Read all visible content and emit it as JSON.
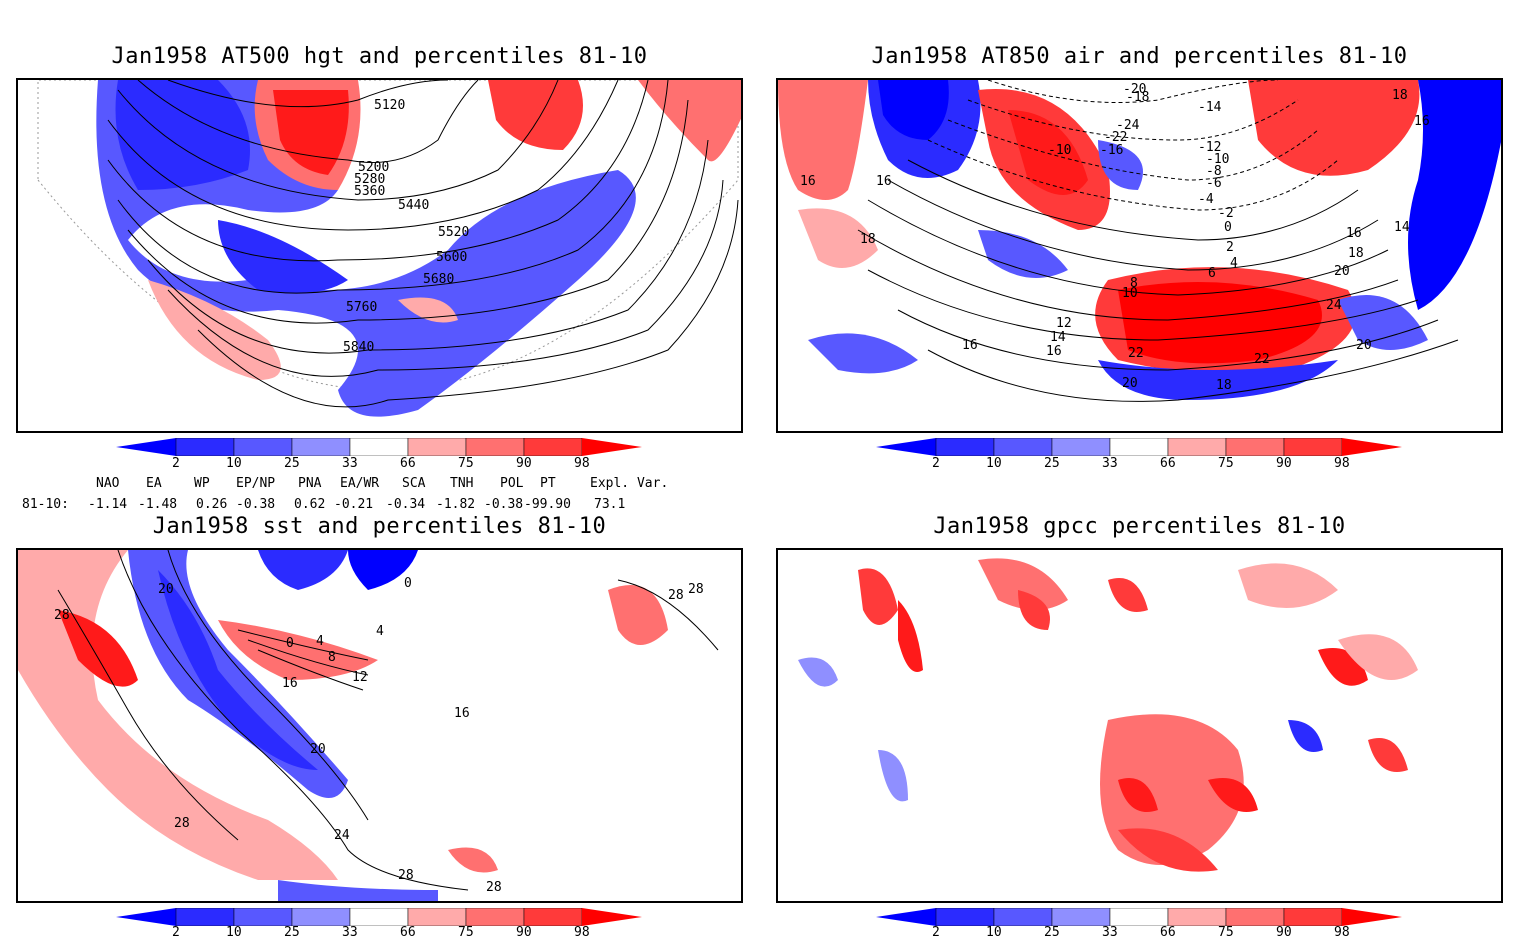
{
  "colors": {
    "bins": [
      "#0000ff",
      "#2b2bff",
      "#5858ff",
      "#8f8fff",
      "#c4c4ff",
      "#ffffff",
      "#ffaaaa",
      "#ff7070",
      "#ff3a3a",
      "#ff1a1a",
      "#ff0000"
    ],
    "coast": "#20c5c5",
    "contour": "#000000"
  },
  "colorbar": {
    "labels": [
      "2",
      "10",
      "25",
      "33",
      "66",
      "75",
      "90",
      "98"
    ]
  },
  "panels": [
    {
      "id": "hgt500",
      "title": "Jan1958 AT500 hgt and percentiles 81-10",
      "contour_labels": [
        "5120",
        "5200",
        "5280",
        "5360",
        "5440",
        "5520",
        "5600",
        "5680",
        "5760",
        "5840"
      ]
    },
    {
      "id": "air850",
      "title": "Jan1958 AT850 air and percentiles 81-10",
      "contour_labels": [
        "-20",
        "-18",
        "-14",
        "-24",
        "-22",
        "-16",
        "-10",
        "-12",
        "-10",
        "-8",
        "-6",
        "-4",
        "-2",
        "0",
        "2",
        "4",
        "6",
        "8",
        "10",
        "12",
        "14",
        "16",
        "16",
        "16",
        "18",
        "18",
        "16",
        "14",
        "16",
        "18",
        "20",
        "24",
        "22",
        "22",
        "20",
        "20",
        "18",
        "16"
      ]
    },
    {
      "id": "sst",
      "title": "Jan1958 sst and percentiles 81-10",
      "contour_labels": [
        "28",
        "20",
        "0",
        "0",
        "4",
        "4",
        "8",
        "12",
        "16",
        "16",
        "20",
        "28",
        "24",
        "28",
        "28",
        "28",
        "28"
      ]
    },
    {
      "id": "gpcc",
      "title": "Jan1958 gpcc percentiles 81-10",
      "contour_labels": []
    }
  ],
  "teleconnections": {
    "headers": [
      "NAO",
      "EA",
      "WP",
      "EP/NP",
      "PNA",
      "EA/WR",
      "SCA",
      "TNH",
      "POL",
      "PT",
      "Expl. Var."
    ],
    "row_label": "81-10:",
    "values": [
      "-1.14",
      "-1.48",
      "0.26",
      "-0.38",
      "0.62",
      "-0.21",
      "-0.34",
      "-1.82",
      "-0.38",
      "-99.90",
      "73.1"
    ]
  }
}
